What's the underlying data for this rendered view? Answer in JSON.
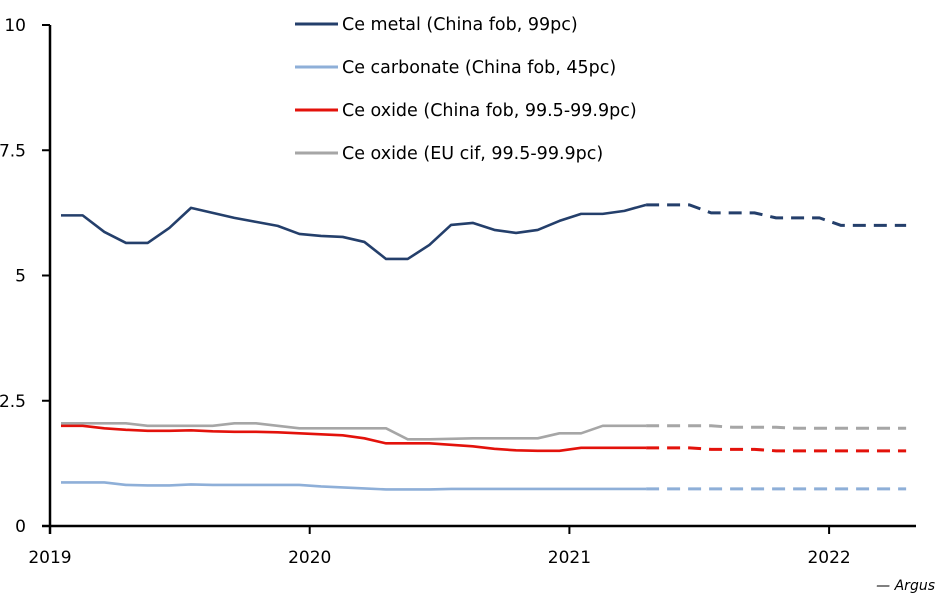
{
  "chart_data": {
    "type": "line",
    "title": "",
    "xlabel": "",
    "ylabel": "",
    "ylim": [
      0,
      10
    ],
    "yticks": [
      0,
      2.5,
      5,
      7.5,
      10
    ],
    "ytick_labels": [
      "0",
      "2.5",
      "5",
      "7.5",
      "10"
    ],
    "xlim_years": [
      2019,
      2022.33
    ],
    "xticks": [
      2019,
      2020,
      2021,
      2022
    ],
    "xtick_labels": [
      "2019",
      "2020",
      "2021",
      "2022"
    ],
    "grid": false,
    "legend_position": "top-center",
    "source": "— Argus",
    "x_start": "2019-01",
    "x_interval": "monthly",
    "forecast_start_index": 27,
    "series": [
      {
        "name": "Ce metal (China fob, 99pc)",
        "color": "#243F6B",
        "values": [
          6.2,
          6.2,
          5.87,
          5.65,
          5.65,
          5.95,
          6.35,
          6.25,
          6.15,
          6.07,
          5.99,
          5.83,
          5.79,
          5.77,
          5.67,
          5.33,
          5.33,
          5.61,
          6.01,
          6.05,
          5.91,
          5.85,
          5.91,
          6.09,
          6.23,
          6.23,
          6.29,
          6.41,
          6.41,
          6.41,
          6.25,
          6.25,
          6.25,
          6.15,
          6.15,
          6.15,
          6.0,
          6.0,
          6.0,
          6.0
        ]
      },
      {
        "name": "Ce carbonate (China fob, 45pc)",
        "color": "#8EAFD8",
        "values": [
          0.87,
          0.87,
          0.87,
          0.82,
          0.81,
          0.81,
          0.83,
          0.82,
          0.82,
          0.82,
          0.82,
          0.82,
          0.79,
          0.77,
          0.75,
          0.73,
          0.73,
          0.73,
          0.74,
          0.74,
          0.74,
          0.74,
          0.74,
          0.74,
          0.74,
          0.74,
          0.74,
          0.74,
          0.74,
          0.74,
          0.74,
          0.74,
          0.74,
          0.74,
          0.74,
          0.74,
          0.74,
          0.74,
          0.74,
          0.74
        ]
      },
      {
        "name": "Ce oxide (China fob, 99.5-99.9pc)",
        "color": "#E3120B",
        "values": [
          2.0,
          2.0,
          1.95,
          1.92,
          1.9,
          1.9,
          1.91,
          1.89,
          1.88,
          1.88,
          1.87,
          1.85,
          1.83,
          1.81,
          1.75,
          1.65,
          1.65,
          1.65,
          1.62,
          1.59,
          1.54,
          1.51,
          1.5,
          1.5,
          1.56,
          1.56,
          1.56,
          1.56,
          1.56,
          1.56,
          1.53,
          1.53,
          1.53,
          1.5,
          1.5,
          1.5,
          1.5,
          1.5,
          1.5,
          1.5
        ]
      },
      {
        "name": "Ce oxide (EU cif, 99.5-99.9pc)",
        "color": "#A6A6A6",
        "values": [
          2.05,
          2.05,
          2.05,
          2.05,
          2.0,
          2.0,
          2.0,
          2.0,
          2.05,
          2.05,
          2.0,
          1.95,
          1.95,
          1.95,
          1.95,
          1.95,
          1.73,
          1.73,
          1.74,
          1.75,
          1.75,
          1.75,
          1.75,
          1.85,
          1.85,
          2.0,
          2.0,
          2.0,
          2.0,
          2.0,
          2.0,
          1.97,
          1.97,
          1.97,
          1.95,
          1.95,
          1.95,
          1.95,
          1.95,
          1.95
        ]
      }
    ]
  }
}
